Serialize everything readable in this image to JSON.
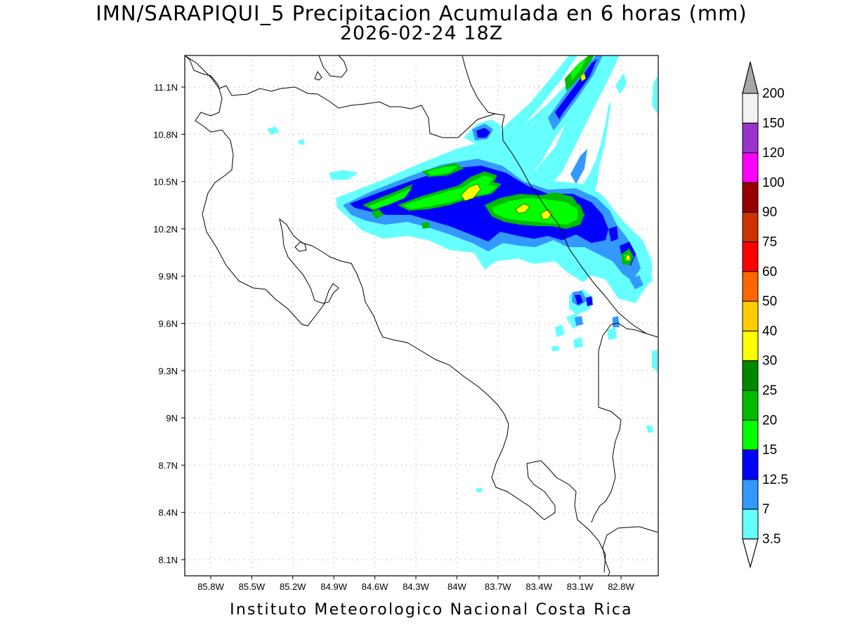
{
  "title": "IMN/SARAPIQUI_5 Precipitacion Acumulada en 6 horas (mm)",
  "subtitle": "2026-02-24 18Z",
  "footer": "Instituto Meteorologico Nacional Costa Rica",
  "map": {
    "region": "Costa Rica",
    "lon_range": [
      -86.0,
      -82.4
    ],
    "lat_range": [
      8.0,
      11.3
    ],
    "x_ticks": [
      "85.8W",
      "85.5W",
      "85.2W",
      "84.9W",
      "84.6W",
      "84.3W",
      "84W",
      "83.7W",
      "83.4W",
      "83.1W",
      "82.8W"
    ],
    "y_ticks": [
      "11.1N",
      "10.8N",
      "10.5N",
      "10.2N",
      "9.9N",
      "9.6N",
      "9.3N",
      "9N",
      "8.7N",
      "8.4N",
      "8.1N"
    ],
    "grid": "dotted"
  },
  "colorbar": {
    "unit": "mm",
    "labels": [
      "200",
      "150",
      "120",
      "100",
      "90",
      "75",
      "60",
      "50",
      "40",
      "30",
      "25",
      "20",
      "15",
      "12.5",
      "7",
      "3.5"
    ],
    "colors": [
      "#f2f2f2",
      "#9933cc",
      "#ff00ff",
      "#990000",
      "#cc3300",
      "#ff0000",
      "#ff6600",
      "#ffcc00",
      "#ffff00",
      "#008800",
      "#00bb00",
      "#00ff00",
      "#0000ff",
      "#3399ff",
      "#66ffff"
    ],
    "over_color": "#a6a6a6",
    "under_color": "#ffffff"
  }
}
